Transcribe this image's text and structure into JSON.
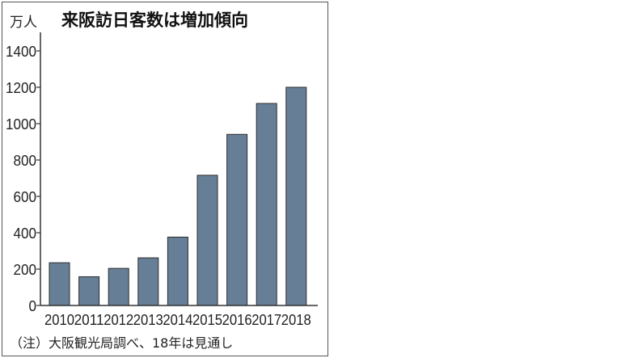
{
  "chart_data": {
    "type": "bar",
    "title": "来阪訪日客数は増加傾向",
    "ylabel": "万人",
    "xlabel": "",
    "categories": [
      "2010",
      "2011",
      "2012",
      "2013",
      "2014",
      "2015",
      "2016",
      "2017",
      "2018"
    ],
    "values": [
      235,
      158,
      204,
      262,
      376,
      716,
      941,
      1111,
      1200
    ],
    "ylim": [
      0,
      1480
    ],
    "yticks": [
      0,
      200,
      400,
      600,
      800,
      1000,
      1200,
      1400
    ],
    "note": "（注）大阪観光局調べ、18年は見通し",
    "grid": false,
    "bar_color": "#677f96",
    "bar_edge_color": "#2b2b2b"
  }
}
